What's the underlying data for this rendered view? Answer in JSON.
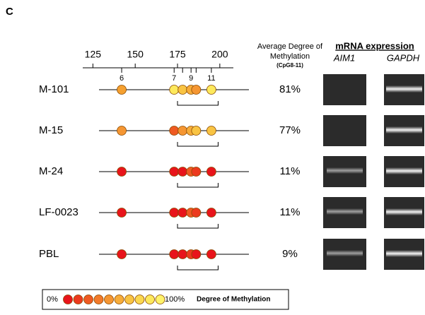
{
  "panel_label": "C",
  "scale": {
    "xlim": [
      119,
      208
    ],
    "ticks": [
      125,
      150,
      175,
      200
    ]
  },
  "sites": [
    {
      "label": "6",
      "position": 142
    },
    {
      "label": "7",
      "position": 173
    },
    {
      "label": null,
      "position": 178
    },
    {
      "label": "9",
      "position": 183
    },
    {
      "label": null,
      "position": 186
    },
    {
      "label": "11",
      "position": 195
    }
  ],
  "bracket": {
    "from": 175,
    "to": 199
  },
  "headers": {
    "average_line1": "Average Degree of",
    "average_line2": "Methylation",
    "average_sub": "(CpG8-11)",
    "mrna": "mRNA expression",
    "gene1": "AIM1",
    "gene2": "GAPDH"
  },
  "samples": [
    {
      "name": "M-101",
      "average": "81%",
      "colors": [
        "#f5a030",
        "#fde95c",
        "#f9c443",
        "#f7ad3a",
        "#f59632",
        "#fde95c"
      ]
    },
    {
      "name": "M-15",
      "average": "77%",
      "colors": [
        "#f59632",
        "#ef5a22",
        "#f59632",
        "#f7ad3a",
        "#f9c443",
        "#f9c443"
      ]
    },
    {
      "name": "M-24",
      "average": "11%",
      "colors": [
        "#e8141b",
        "#e8141b",
        "#e8141b",
        "#ef5a22",
        "#ec3a1e",
        "#e8141b"
      ]
    },
    {
      "name": "LF-0023",
      "average": "11%",
      "colors": [
        "#e8141b",
        "#e8141b",
        "#e8141b",
        "#ef5a22",
        "#ec3a1e",
        "#e8141b"
      ]
    },
    {
      "name": "PBL",
      "average": "9%",
      "colors": [
        "#e8141b",
        "#e8141b",
        "#e8141b",
        "#ec3a1e",
        "#e8141b",
        "#e8141b"
      ]
    }
  ],
  "legend": {
    "low": "0%",
    "high": "100%",
    "title": "Degree of Methylation",
    "colors": [
      "#e8141b",
      "#ec3a1e",
      "#ef5a22",
      "#f27a2a",
      "#f59632",
      "#f7ad3a",
      "#f9c443",
      "#fbd84f",
      "#fde95c",
      "#fff36a"
    ]
  }
}
